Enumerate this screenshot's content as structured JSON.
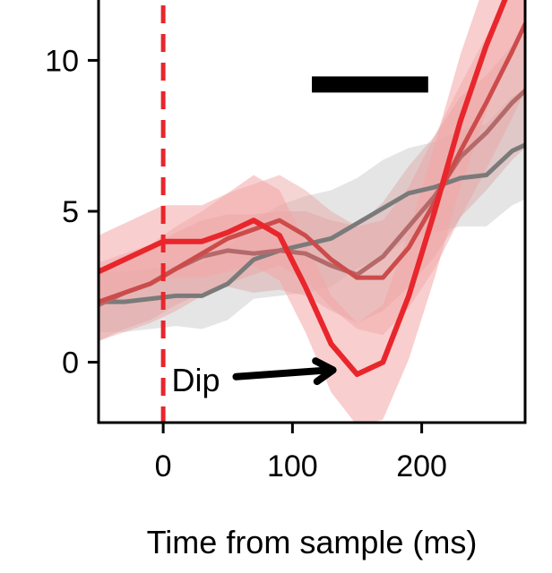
{
  "chart_data": {
    "type": "line",
    "title": "",
    "xlabel": "Time from sample (ms)",
    "ylabel": "",
    "xlim": [
      -50,
      280
    ],
    "ylim": [
      -2,
      12
    ],
    "xticks": [
      0,
      100,
      200
    ],
    "yticks": [
      0,
      5,
      10
    ],
    "grid": false,
    "legend": "none",
    "series": [
      {
        "color": "#7a7a7a",
        "band_color": "#cfcfcf",
        "band_opacity": 0.55,
        "x": [
          -50,
          -30,
          -10,
          10,
          30,
          50,
          70,
          90,
          110,
          130,
          150,
          170,
          190,
          210,
          230,
          250,
          270,
          280
        ],
        "y": [
          2.0,
          2.0,
          2.1,
          2.2,
          2.2,
          2.6,
          3.4,
          3.7,
          3.9,
          4.1,
          4.6,
          5.1,
          5.6,
          5.8,
          6.1,
          6.2,
          7.0,
          7.2
        ],
        "band": [
          1.0,
          1.0,
          1.0,
          1.0,
          1.1,
          1.2,
          1.3,
          1.5,
          1.6,
          1.6,
          1.5,
          1.6,
          1.5,
          1.5,
          1.6,
          1.7,
          1.8,
          1.8
        ]
      },
      {
        "color": "#b46a6a",
        "band_color": "#d9a3a3",
        "band_opacity": 0.45,
        "x": [
          -50,
          -30,
          -10,
          10,
          30,
          50,
          70,
          90,
          110,
          130,
          150,
          170,
          190,
          210,
          230,
          250,
          270,
          280
        ],
        "y": [
          1.9,
          2.3,
          2.6,
          3.1,
          3.5,
          3.7,
          3.6,
          3.7,
          3.6,
          3.2,
          2.9,
          3.5,
          4.5,
          5.5,
          6.8,
          7.6,
          8.6,
          9.0
        ],
        "band": [
          1.2,
          1.2,
          1.2,
          1.2,
          1.2,
          1.2,
          1.3,
          1.3,
          1.4,
          1.5,
          1.6,
          1.8,
          2.0,
          2.0,
          2.0,
          1.9,
          1.9,
          1.9
        ]
      },
      {
        "color": "#cc4b4b",
        "band_color": "#e8a0a0",
        "band_opacity": 0.45,
        "x": [
          -50,
          -30,
          -10,
          10,
          30,
          50,
          70,
          90,
          110,
          130,
          150,
          170,
          190,
          210,
          230,
          250,
          270,
          280
        ],
        "y": [
          2.0,
          2.3,
          2.6,
          3.1,
          3.6,
          4.1,
          4.4,
          4.7,
          4.2,
          3.4,
          2.8,
          2.8,
          3.8,
          5.3,
          7.0,
          8.6,
          10.3,
          11.2
        ],
        "band": [
          1.3,
          1.3,
          1.3,
          1.4,
          1.4,
          1.5,
          1.5,
          1.5,
          1.5,
          1.6,
          1.7,
          1.9,
          2.0,
          2.2,
          2.2,
          2.2,
          2.2,
          2.2
        ]
      },
      {
        "color": "#e8262c",
        "band_color": "#f4a6a6",
        "band_opacity": 0.55,
        "x": [
          -50,
          -30,
          -10,
          0,
          10,
          30,
          50,
          70,
          90,
          110,
          130,
          150,
          170,
          190,
          210,
          230,
          250,
          270,
          280
        ],
        "y": [
          3.0,
          3.4,
          3.8,
          4.0,
          4.0,
          4.0,
          4.3,
          4.7,
          4.2,
          2.5,
          0.6,
          -0.4,
          0.0,
          2.2,
          5.0,
          8.0,
          10.5,
          12.6,
          13.4
        ],
        "band": [
          1.2,
          1.2,
          1.2,
          1.2,
          1.2,
          1.2,
          1.3,
          1.5,
          1.5,
          1.5,
          1.6,
          1.7,
          1.9,
          2.1,
          2.2,
          2.2,
          2.2,
          2.2,
          2.2
        ]
      }
    ],
    "reference_line": {
      "x": 0,
      "color": "#e8262c",
      "style": "dashed"
    },
    "significance_bar": {
      "x_start": 115,
      "x_end": 205,
      "y": 9.2,
      "color": "#000000"
    },
    "annotations": [
      {
        "text": "Dip",
        "x": 55,
        "y": -0.6,
        "arrow_to_x": 130,
        "arrow_to_y": -0.2
      }
    ]
  }
}
